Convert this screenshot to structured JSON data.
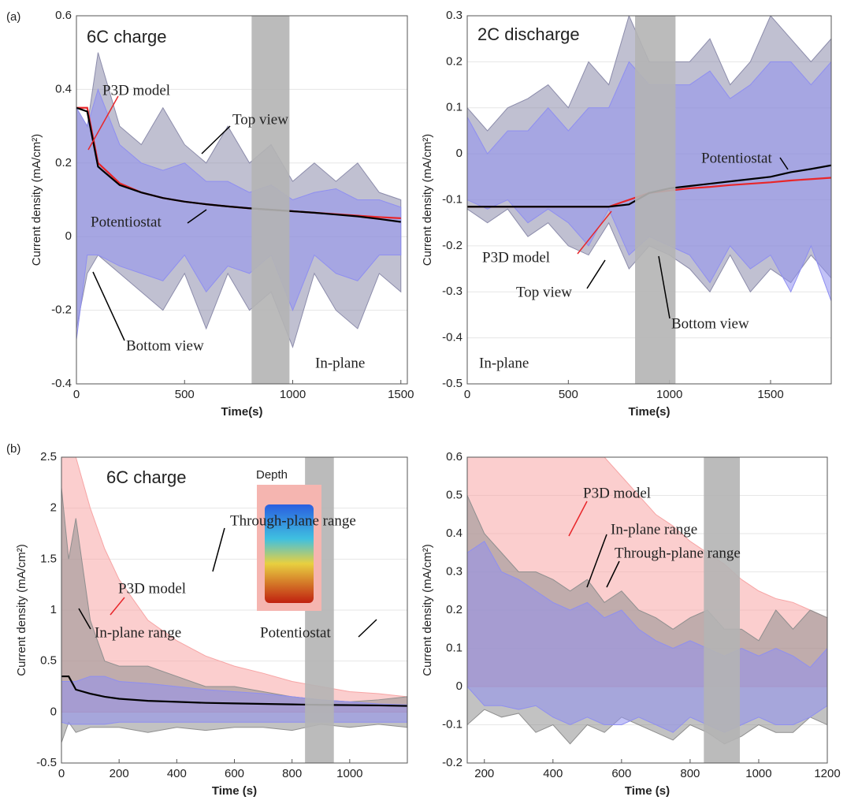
{
  "panel_labels": [
    "(a)",
    "(b)"
  ],
  "chart_data": [
    {
      "type": "band",
      "title": "6C charge",
      "annotation": "In-plane",
      "x_label": "Time(s)",
      "y_label": "Current density (mA/cm²)",
      "xlim": [
        0,
        1530
      ],
      "xticks": [
        0,
        500,
        1000,
        1500
      ],
      "ylim": [
        -0.4,
        0.6
      ],
      "yticks": [
        -0.4,
        -0.2,
        0,
        0.2,
        0.4,
        0.6
      ],
      "shaded_span": [
        810,
        985
      ],
      "x": [
        0,
        50,
        100,
        200,
        300,
        400,
        500,
        600,
        700,
        800,
        900,
        1000,
        1100,
        1200,
        1300,
        1400,
        1500
      ],
      "series": [
        {
          "name": "Top view",
          "color": "#8c8cab",
          "label_color": "#000000",
          "upper": [
            0.35,
            0.3,
            0.5,
            0.3,
            0.25,
            0.35,
            0.25,
            0.2,
            0.3,
            0.2,
            0.25,
            0.15,
            0.2,
            0.15,
            0.2,
            0.12,
            0.1
          ],
          "lower": [
            -0.25,
            -0.1,
            -0.05,
            -0.1,
            -0.15,
            -0.2,
            -0.1,
            -0.25,
            -0.1,
            -0.2,
            -0.15,
            -0.3,
            -0.1,
            -0.2,
            -0.25,
            -0.1,
            -0.15
          ]
        },
        {
          "name": "Bottom view",
          "color": "#8f8ff0",
          "label_color": "#000000",
          "upper": [
            0.35,
            0.3,
            0.4,
            0.25,
            0.2,
            0.18,
            0.2,
            0.15,
            0.15,
            0.12,
            0.14,
            0.1,
            0.12,
            0.13,
            0.1,
            0.1,
            0.08
          ],
          "lower": [
            -0.28,
            -0.05,
            -0.05,
            -0.08,
            -0.1,
            -0.12,
            -0.05,
            -0.15,
            -0.08,
            -0.1,
            -0.05,
            -0.2,
            -0.05,
            -0.1,
            -0.12,
            -0.05,
            -0.05
          ]
        },
        {
          "name": "P3D model",
          "color": "#e8262a",
          "label_color": "#e8262a",
          "values": [
            0.35,
            0.35,
            0.2,
            0.145,
            0.12,
            0.105,
            0.095,
            0.088,
            0.082,
            0.077,
            0.073,
            0.069,
            0.065,
            0.061,
            0.057,
            0.053,
            0.05
          ]
        },
        {
          "name": "Potentiostat",
          "color": "#000000",
          "label_color": "#000000",
          "values": [
            0.35,
            0.34,
            0.19,
            0.14,
            0.12,
            0.105,
            0.095,
            0.088,
            0.082,
            0.077,
            0.073,
            0.069,
            0.065,
            0.06,
            0.055,
            0.048,
            0.04
          ]
        }
      ]
    },
    {
      "type": "band",
      "title": "2C discharge",
      "annotation": "In-plane",
      "x_label": "Time(s)",
      "y_label": "Current density (mA/cm²)",
      "xlim": [
        0,
        1800
      ],
      "xticks": [
        0,
        500,
        1000,
        1500
      ],
      "ylim": [
        -0.5,
        0.3
      ],
      "yticks": [
        -0.5,
        -0.4,
        -0.3,
        -0.2,
        -0.1,
        0,
        0.1,
        0.2,
        0.3
      ],
      "shaded_span": [
        830,
        1030
      ],
      "x": [
        0,
        100,
        200,
        300,
        400,
        500,
        600,
        700,
        800,
        900,
        1000,
        1100,
        1200,
        1300,
        1400,
        1500,
        1600,
        1700,
        1800
      ],
      "series": [
        {
          "name": "Top view",
          "color": "#8c8cab",
          "label_color": "#000000",
          "upper": [
            0.1,
            0.05,
            0.1,
            0.12,
            0.15,
            0.1,
            0.2,
            0.15,
            0.3,
            0.2,
            0.2,
            0.2,
            0.25,
            0.15,
            0.2,
            0.3,
            0.25,
            0.2,
            0.25
          ],
          "lower": [
            -0.12,
            -0.15,
            -0.12,
            -0.18,
            -0.15,
            -0.2,
            -0.22,
            -0.15,
            -0.25,
            -0.2,
            -0.22,
            -0.25,
            -0.3,
            -0.22,
            -0.3,
            -0.25,
            -0.28,
            -0.22,
            -0.27
          ]
        },
        {
          "name": "Bottom view",
          "color": "#8f8ff0",
          "label_color": "#000000",
          "upper": [
            0.08,
            0.0,
            0.05,
            0.05,
            0.1,
            0.05,
            0.1,
            0.1,
            0.2,
            0.15,
            0.15,
            0.15,
            0.18,
            0.12,
            0.15,
            0.2,
            0.2,
            0.15,
            0.2
          ],
          "lower": [
            -0.1,
            -0.12,
            -0.1,
            -0.15,
            -0.12,
            -0.15,
            -0.2,
            -0.12,
            -0.22,
            -0.18,
            -0.2,
            -0.22,
            -0.28,
            -0.2,
            -0.25,
            -0.22,
            -0.3,
            -0.2,
            -0.32
          ]
        },
        {
          "name": "P3D model",
          "color": "#e8262a",
          "label_color": "#e8262a",
          "values": [
            -0.115,
            -0.115,
            -0.115,
            -0.115,
            -0.115,
            -0.115,
            -0.115,
            -0.115,
            -0.1,
            -0.085,
            -0.08,
            -0.075,
            -0.072,
            -0.068,
            -0.065,
            -0.062,
            -0.058,
            -0.055,
            -0.052
          ]
        },
        {
          "name": "Potentiostat",
          "color": "#000000",
          "label_color": "#000000",
          "values": [
            -0.115,
            -0.115,
            -0.115,
            -0.115,
            -0.115,
            -0.115,
            -0.115,
            -0.115,
            -0.11,
            -0.085,
            -0.075,
            -0.07,
            -0.065,
            -0.06,
            -0.055,
            -0.05,
            -0.04,
            -0.033,
            -0.025
          ]
        }
      ]
    },
    {
      "type": "band",
      "title": "6C charge",
      "annotation": "Depth",
      "x_label": "Time (s)",
      "y_label": "Current density (mA/cm²)",
      "xlim": [
        0,
        1200
      ],
      "xticks": [
        0,
        200,
        400,
        600,
        800,
        1000
      ],
      "ylim": [
        -0.5,
        2.5
      ],
      "yticks": [
        -0.5,
        0,
        0.5,
        1,
        1.5,
        2,
        2.5
      ],
      "shaded_span": [
        845,
        945
      ],
      "x": [
        0,
        25,
        50,
        100,
        150,
        200,
        300,
        400,
        500,
        600,
        700,
        800,
        900,
        1000,
        1100,
        1200
      ],
      "series": [
        {
          "name": "P3D model",
          "color": "#f7a5a5",
          "label_color": "#e8262a",
          "upper": [
            2.5,
            2.5,
            2.5,
            2.0,
            1.6,
            1.3,
            0.9,
            0.7,
            0.55,
            0.45,
            0.38,
            0.3,
            0.25,
            0.2,
            0.18,
            0.15
          ],
          "lower": [
            0,
            0,
            0,
            0,
            0,
            0,
            0,
            0,
            0,
            0,
            0,
            0,
            0,
            0,
            0,
            0
          ]
        },
        {
          "name": "Through-plane range",
          "color": "#8f8f8f",
          "label_color": "#000000",
          "upper": [
            2.2,
            1.5,
            1.9,
            0.9,
            0.5,
            0.45,
            0.45,
            0.35,
            0.25,
            0.25,
            0.2,
            0.15,
            0.12,
            0.1,
            0.12,
            0.15
          ],
          "lower": [
            -0.3,
            -0.1,
            -0.2,
            -0.15,
            -0.15,
            -0.15,
            -0.2,
            -0.15,
            -0.18,
            -0.15,
            -0.15,
            -0.18,
            -0.12,
            -0.15,
            -0.12,
            -0.15
          ]
        },
        {
          "name": "In-plane range",
          "color": "#8f8ff0",
          "label_color": "#000000",
          "upper": [
            0.3,
            0.3,
            0.3,
            0.35,
            0.35,
            0.3,
            0.28,
            0.25,
            0.22,
            0.2,
            0.18,
            0.15,
            0.12,
            0.1,
            0.08,
            0.07
          ],
          "lower": [
            -0.1,
            -0.12,
            -0.12,
            -0.12,
            -0.12,
            -0.1,
            -0.1,
            -0.1,
            -0.1,
            -0.1,
            -0.1,
            -0.1,
            -0.1,
            -0.1,
            -0.1,
            -0.1
          ]
        },
        {
          "name": "Potentiostat",
          "color": "#000000",
          "label_color": "#000000",
          "values": [
            0.35,
            0.35,
            0.22,
            0.18,
            0.15,
            0.13,
            0.11,
            0.1,
            0.09,
            0.085,
            0.08,
            0.075,
            0.07,
            0.068,
            0.065,
            0.06
          ]
        }
      ]
    },
    {
      "type": "band",
      "x_label": "Time (s)",
      "y_label": "Current density (mA/cm²)",
      "xlim": [
        150,
        1200
      ],
      "xticks": [
        200,
        400,
        600,
        800,
        1000,
        1200
      ],
      "ylim": [
        -0.2,
        0.6
      ],
      "yticks": [
        -0.2,
        -0.1,
        0,
        0.1,
        0.2,
        0.3,
        0.4,
        0.5,
        0.6
      ],
      "shaded_span": [
        840,
        945
      ],
      "x": [
        150,
        200,
        250,
        300,
        350,
        400,
        450,
        500,
        550,
        600,
        650,
        700,
        750,
        800,
        850,
        900,
        950,
        1000,
        1050,
        1100,
        1150,
        1200
      ],
      "series": [
        {
          "name": "P3D model",
          "color": "#f7a5a5",
          "label_color": "#e8262a",
          "upper": [
            0.6,
            0.6,
            0.6,
            0.6,
            0.6,
            0.6,
            0.6,
            0.6,
            0.6,
            0.55,
            0.5,
            0.45,
            0.42,
            0.38,
            0.35,
            0.32,
            0.28,
            0.25,
            0.23,
            0.22,
            0.2,
            0.18
          ],
          "lower": [
            0,
            0,
            0,
            0,
            0,
            0,
            0,
            0,
            0,
            0,
            0,
            0,
            0,
            0,
            0,
            0,
            0,
            0,
            0,
            0,
            0,
            0
          ]
        },
        {
          "name": "In-plane range",
          "color": "#8f8f8f",
          "label_color": "#000000",
          "upper": [
            0.5,
            0.4,
            0.35,
            0.3,
            0.3,
            0.28,
            0.25,
            0.28,
            0.22,
            0.25,
            0.2,
            0.18,
            0.15,
            0.18,
            0.2,
            0.15,
            0.15,
            0.12,
            0.2,
            0.15,
            0.2,
            0.18
          ],
          "lower": [
            -0.1,
            -0.06,
            -0.08,
            -0.07,
            -0.12,
            -0.1,
            -0.15,
            -0.1,
            -0.12,
            -0.08,
            -0.1,
            -0.12,
            -0.14,
            -0.1,
            -0.12,
            -0.15,
            -0.13,
            -0.1,
            -0.12,
            -0.12,
            -0.08,
            -0.1
          ]
        },
        {
          "name": "Through-plane range",
          "color": "#8f8ff0",
          "label_color": "#000000",
          "upper": [
            0.35,
            0.38,
            0.3,
            0.28,
            0.25,
            0.22,
            0.2,
            0.22,
            0.18,
            0.2,
            0.15,
            0.12,
            0.1,
            0.12,
            0.1,
            0.08,
            0.1,
            0.08,
            0.1,
            0.08,
            0.05,
            0.1
          ],
          "lower": [
            0,
            -0.05,
            -0.05,
            -0.06,
            -0.05,
            -0.08,
            -0.1,
            -0.08,
            -0.1,
            -0.1,
            -0.08,
            -0.1,
            -0.12,
            -0.08,
            -0.1,
            -0.12,
            -0.1,
            -0.08,
            -0.1,
            -0.1,
            -0.08,
            -0.05
          ]
        }
      ]
    }
  ]
}
